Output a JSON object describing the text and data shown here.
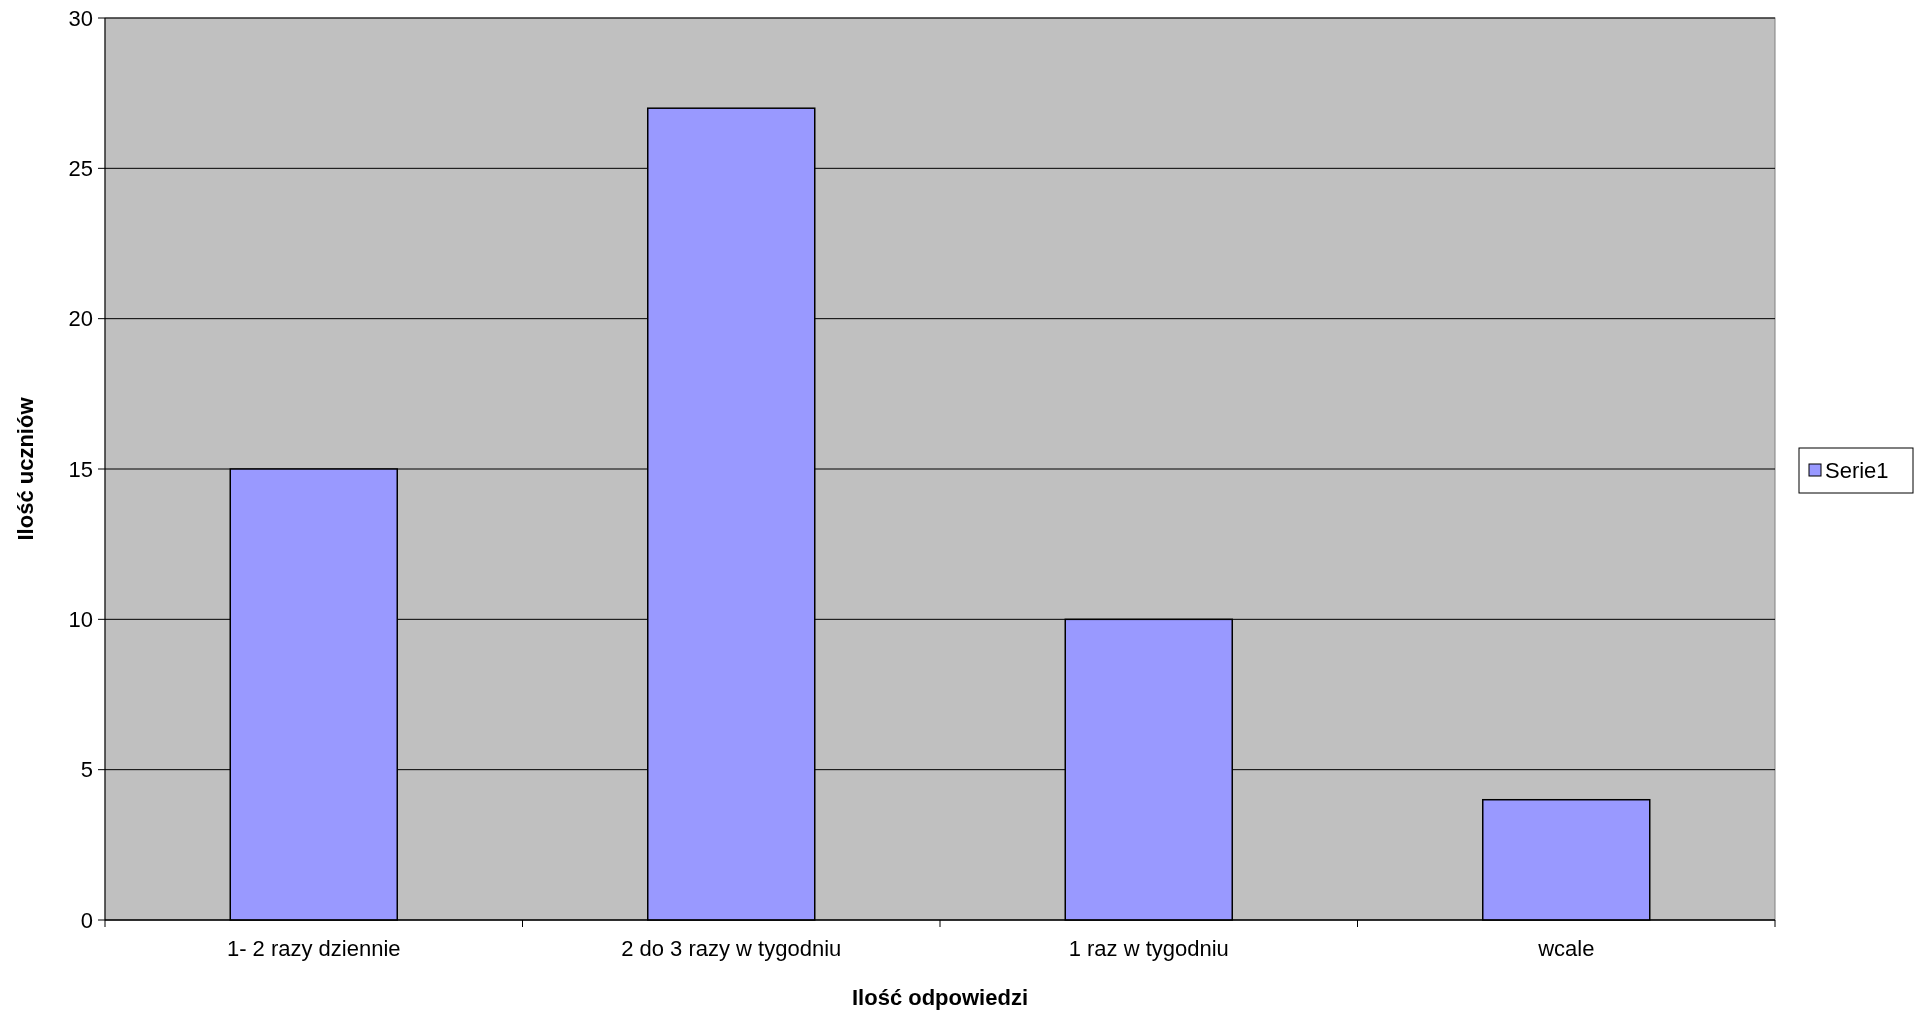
{
  "chart_data": {
    "type": "bar",
    "xlabel": "Ilość odpowiedzi",
    "ylabel": "Ilość uczniów",
    "categories": [
      "1- 2 razy dziennie",
      "2 do 3 razy w tygodniu",
      "1 raz w tygodniu",
      "wcale"
    ],
    "series": [
      {
        "name": "Serie1",
        "color": "#9999ff",
        "values": [
          15,
          27,
          10,
          4
        ]
      }
    ],
    "ylim": [
      0,
      30
    ],
    "yticks": [
      0,
      5,
      10,
      15,
      20,
      25,
      30
    ],
    "grid": "y",
    "legend": "right"
  }
}
